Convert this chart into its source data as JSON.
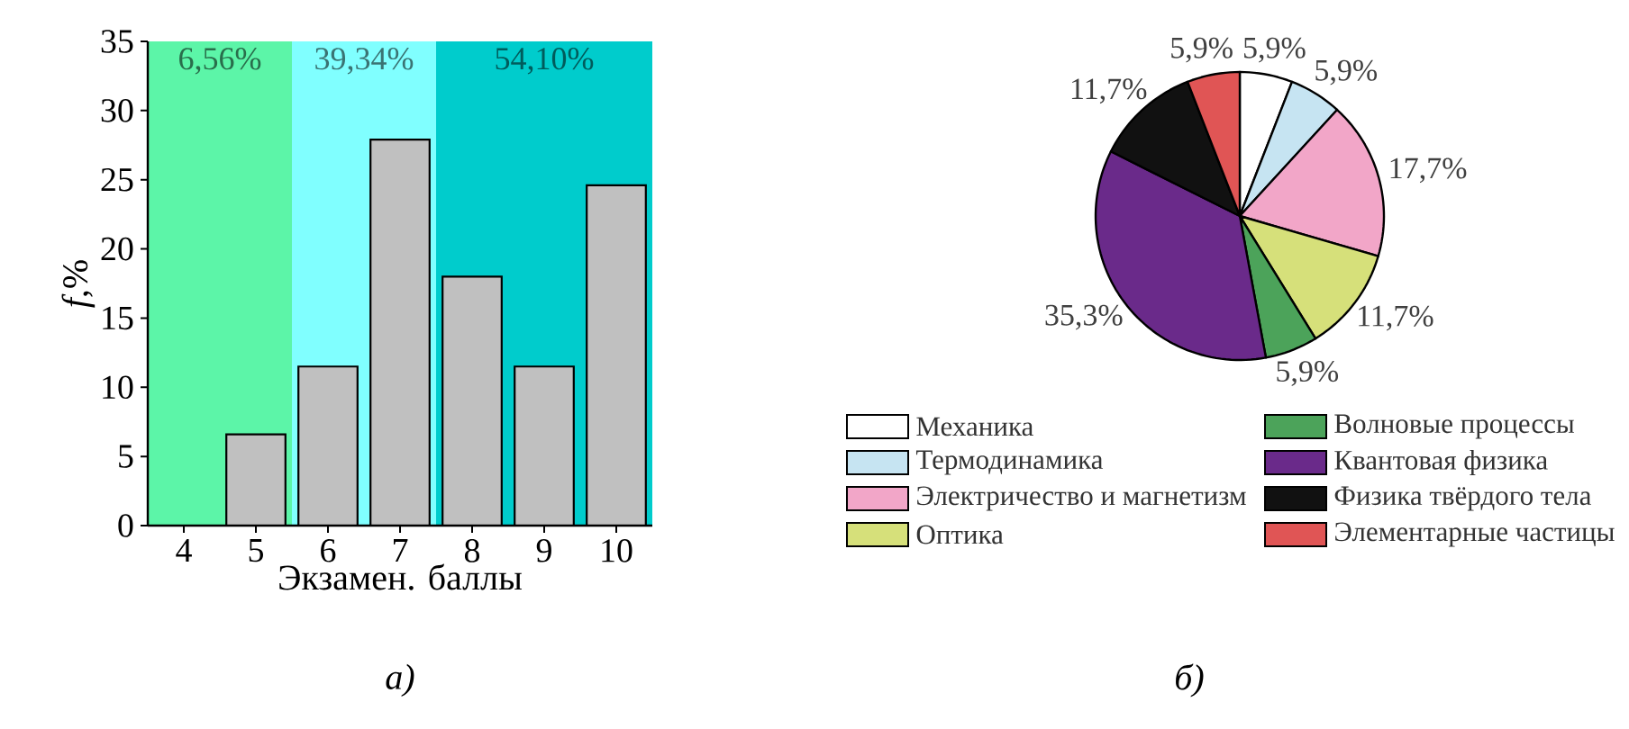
{
  "chart_data": [
    {
      "type": "bar",
      "x": [
        4,
        5,
        6,
        7,
        8,
        9,
        10
      ],
      "values": [
        0,
        6.6,
        11.5,
        27.9,
        18,
        11.5,
        24.6
      ],
      "color": "#c0c0c0",
      "xlim": [
        3.5,
        10.5
      ],
      "xticks": [
        4,
        5,
        6,
        7,
        8,
        9,
        10
      ],
      "ylim": [
        0,
        35
      ],
      "yticks": [
        0,
        5,
        10,
        15,
        20,
        25,
        30,
        35
      ],
      "xlabel": "Экзамен. баллы",
      "ylabel": "*f*,%",
      "bands": [
        {
          "axis": "x",
          "from": 3.5,
          "to": 5.5,
          "label": "6,56%",
          "color": "#5cf5a8"
        },
        {
          "axis": "x",
          "from": 5.5,
          "to": 7.5,
          "label": "39,34%",
          "color": "#80ffff"
        },
        {
          "axis": "x",
          "from": 7.5,
          "to": 10.5,
          "label": "54,10%",
          "color": "#00cccc"
        }
      ],
      "annotations": [
        "а)"
      ]
    },
    {
      "type": "pie",
      "categories": [
        "Механика",
        "Термодинамика",
        "Электричество и магнетизм",
        "Оптика",
        "Волновые процессы",
        "Квантовая физика",
        "Физика твёрдого тела",
        "Элементарные частицы"
      ],
      "values": [
        5.9,
        5.9,
        17.7,
        11.7,
        5.9,
        35.3,
        11.7,
        5.9
      ],
      "colors": [
        "#ffffff",
        "#c6e4f2",
        "#f2a6c8",
        "#d6e07a",
        "#4ca35a",
        "#6a2a8a",
        "#111111",
        "#e05555"
      ],
      "value_labels": [
        "5,9%",
        "5,9%",
        "17,7%",
        "11,7%",
        "5,9%",
        "35,3%",
        "11,7%",
        "5,9%"
      ],
      "legend": "bottom",
      "annotations": [
        "б)"
      ]
    }
  ]
}
